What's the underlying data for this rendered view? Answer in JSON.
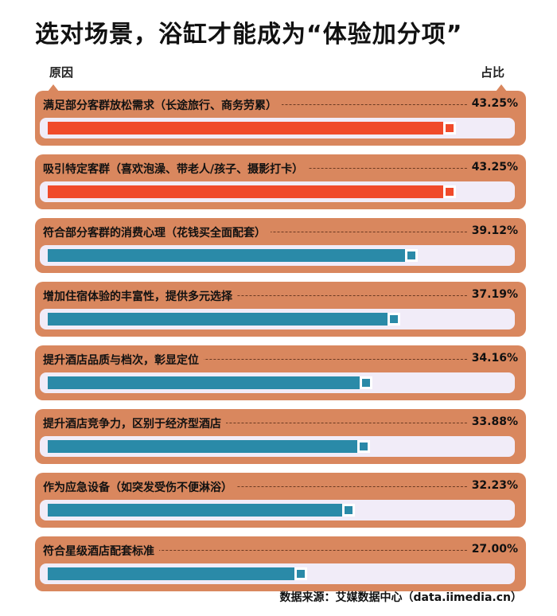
{
  "title": "选对场景，浴缸才能成为“体验加分项”",
  "source": "数据来源：艾媒数据中心（data.iimedia.cn）",
  "colors": {
    "card": "#d9875e",
    "track": "#f1ecf8",
    "highlight": "#f04a2a",
    "normal": "#2a8aa8"
  },
  "chart_data": {
    "type": "bar",
    "orientation": "horizontal",
    "xlabel": "原因",
    "ylabel": "占比",
    "xlim": [
      0,
      50
    ],
    "categories": [
      "满足部分客群放松需求（长途旅行、商务劳累）",
      "吸引特定客群（喜欢泡澡、带老人/孩子、摄影打卡）",
      "符合部分客群的消费心理（花钱买全面配套）",
      "增加住宿体验的丰富性，提供多元选择",
      "提升酒店品质与档次，彰显定位",
      "提升酒店竞争力，区别于经济型酒店",
      "作为应急设备（如突发受伤不便淋浴）",
      "符合星级酒店配套标准"
    ],
    "values": [
      43.25,
      43.25,
      39.12,
      37.19,
      34.16,
      33.88,
      32.23,
      27.0
    ],
    "value_labels": [
      "43.25%",
      "43.25%",
      "39.12%",
      "37.19%",
      "34.16%",
      "33.88%",
      "32.23%",
      "27.00%"
    ],
    "highlighted": [
      true,
      true,
      false,
      false,
      false,
      false,
      false,
      false
    ]
  }
}
